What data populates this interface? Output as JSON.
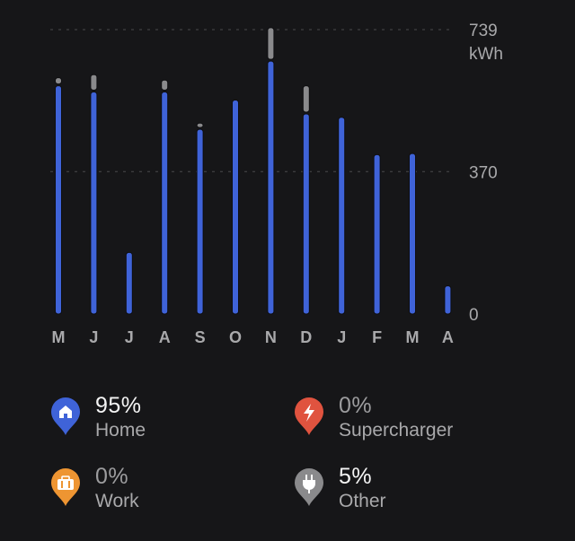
{
  "chart_data": {
    "type": "bar",
    "stacked": true,
    "categories": [
      "M",
      "J",
      "J",
      "A",
      "S",
      "O",
      "N",
      "D",
      "J",
      "F",
      "M",
      "A"
    ],
    "series": [
      {
        "name": "Home",
        "color": "#3f63d8",
        "values": [
          593,
          577,
          160,
          577,
          480,
          556,
          657,
          520,
          511,
          414,
          417,
          73
        ]
      },
      {
        "name": "Other",
        "color": "#8a8a8c",
        "values": [
          21,
          45,
          0,
          31,
          16,
          0,
          87,
          73,
          0,
          0,
          0,
          0
        ]
      }
    ],
    "yticks": [
      {
        "value": 739,
        "label": "739"
      },
      {
        "value": 370,
        "label": "370"
      },
      {
        "value": 0,
        "label": "0"
      }
    ],
    "yunit": "kWh",
    "ylim": [
      0,
      739
    ],
    "grid": true,
    "axis_side": "right"
  },
  "legend": [
    {
      "percent": "95%",
      "label": "Home",
      "icon": "home-icon",
      "color": "#3f63d8",
      "active": true
    },
    {
      "percent": "0%",
      "label": "Supercharger",
      "icon": "lightning-icon",
      "color": "#e0533f",
      "active": false
    },
    {
      "percent": "0%",
      "label": "Work",
      "icon": "briefcase-icon",
      "color": "#ee9532",
      "active": false
    },
    {
      "percent": "5%",
      "label": "Other",
      "icon": "plug-icon",
      "color": "#8a8a8c",
      "active": true
    }
  ]
}
